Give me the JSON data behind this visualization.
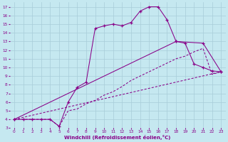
{
  "xlabel": "Windchill (Refroidissement éolien,°C)",
  "bg_color": "#c5e8f0",
  "line_color": "#880088",
  "grid_color": "#a8ccd8",
  "xlim": [
    -0.5,
    23.5
  ],
  "ylim": [
    3,
    17.5
  ],
  "xticks": [
    0,
    1,
    2,
    3,
    4,
    5,
    6,
    7,
    8,
    9,
    10,
    11,
    12,
    13,
    14,
    15,
    16,
    17,
    18,
    19,
    20,
    21,
    22,
    23
  ],
  "yticks": [
    3,
    4,
    5,
    6,
    7,
    8,
    9,
    10,
    11,
    12,
    13,
    14,
    15,
    16,
    17
  ],
  "line1_x": [
    0,
    1,
    2,
    3,
    4,
    5,
    6,
    7,
    8,
    9,
    10,
    11,
    12,
    13,
    14,
    15,
    16,
    17,
    18,
    19,
    20,
    21,
    22,
    23
  ],
  "line1_y": [
    4,
    4,
    4,
    4,
    4,
    3.2,
    6,
    7.7,
    8.3,
    14.5,
    14.8,
    15.0,
    14.8,
    15.2,
    16.5,
    17.0,
    17.0,
    15.5,
    13.0,
    12.8,
    10.4,
    10.0,
    9.6,
    9.5
  ],
  "line2_x": [
    0,
    23
  ],
  "line2_y": [
    4,
    9.5
  ],
  "line3_x": [
    0,
    18,
    21,
    23
  ],
  "line3_y": [
    4,
    13,
    12.8,
    9.5
  ],
  "line4_x": [
    0,
    1,
    2,
    3,
    4,
    5,
    6,
    7,
    8,
    9,
    10,
    11,
    12,
    13,
    14,
    15,
    16,
    17,
    18,
    19,
    20,
    21,
    22,
    23
  ],
  "line4_y": [
    4,
    4,
    4,
    4,
    4,
    3.2,
    5.0,
    5.2,
    5.8,
    6.2,
    6.8,
    7.2,
    7.8,
    8.5,
    9.0,
    9.5,
    10.0,
    10.5,
    11.0,
    11.3,
    11.8,
    12.2,
    9.2,
    9.5
  ]
}
